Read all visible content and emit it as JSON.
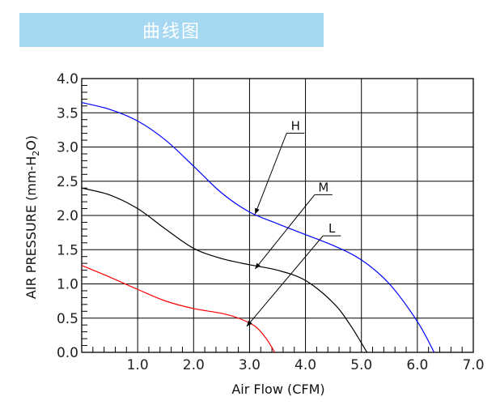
{
  "header": {
    "title": "曲线图"
  },
  "chart_data": {
    "type": "line",
    "xlabel": "Air Flow (CFM)",
    "ylabel_main": "AIR PRESSURE (mm-H",
    "ylabel_sub": "2",
    "ylabel_end": "O)",
    "xlim": [
      0,
      7
    ],
    "ylim": [
      0,
      4
    ],
    "xticks": [
      "1.0",
      "2.0",
      "3.0",
      "4.0",
      "5.0",
      "6.0",
      "7.0"
    ],
    "yticks": [
      "0.0",
      "0.5",
      "1.0",
      "1.5",
      "2.0",
      "2.5",
      "3.0",
      "3.5",
      "4.0"
    ],
    "grid": true,
    "series": [
      {
        "name": "H",
        "color": "#0000ff",
        "x": [
          0,
          0.5,
          1.0,
          1.5,
          2.0,
          2.5,
          3.0,
          3.5,
          4.0,
          4.5,
          5.0,
          5.5,
          6.0,
          6.3
        ],
        "y": [
          3.65,
          3.55,
          3.38,
          3.1,
          2.72,
          2.33,
          2.05,
          1.88,
          1.72,
          1.56,
          1.35,
          1.0,
          0.45,
          0.0
        ]
      },
      {
        "name": "M",
        "color": "#000000",
        "x": [
          0,
          0.5,
          1.0,
          1.5,
          2.0,
          2.5,
          3.0,
          3.5,
          4.0,
          4.5,
          4.8,
          5.1
        ],
        "y": [
          2.4,
          2.3,
          2.1,
          1.8,
          1.52,
          1.37,
          1.28,
          1.2,
          1.05,
          0.72,
          0.4,
          0.0
        ]
      },
      {
        "name": "L",
        "color": "#ff0000",
        "x": [
          0,
          0.5,
          1.0,
          1.5,
          2.0,
          2.5,
          2.8,
          3.1,
          3.3,
          3.45
        ],
        "y": [
          1.27,
          1.1,
          0.92,
          0.75,
          0.64,
          0.57,
          0.5,
          0.38,
          0.2,
          0.0
        ]
      }
    ],
    "annotations": [
      {
        "label": "H",
        "point": [
          3.1,
          2.02
        ],
        "text_at": [
          3.75,
          3.25
        ]
      },
      {
        "label": "M",
        "point": [
          3.1,
          1.22
        ],
        "text_at": [
          4.25,
          2.35
        ]
      },
      {
        "label": "L",
        "point": [
          2.95,
          0.38
        ],
        "text_at": [
          4.4,
          1.75
        ]
      }
    ]
  }
}
